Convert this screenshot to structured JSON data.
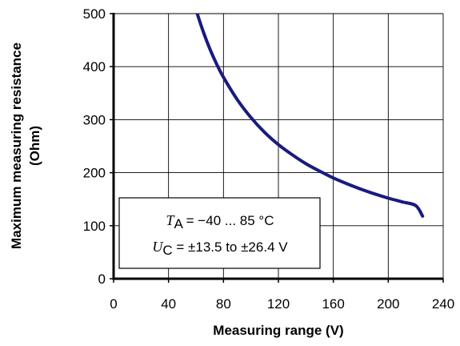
{
  "chart_data": {
    "type": "line",
    "xlabel": "Measuring range  (V)",
    "ylabel_line1": "Maximum measuring resistance",
    "ylabel_line2": "(Ohm)",
    "xlim": [
      0,
      240
    ],
    "ylim": [
      0,
      500
    ],
    "x_ticks": [
      "0",
      "40",
      "80",
      "120",
      "160",
      "200",
      "240"
    ],
    "y_ticks": [
      "0",
      "100",
      "200",
      "300",
      "400",
      "500"
    ],
    "grid": true,
    "series": [
      {
        "color": "#1a1a80",
        "x": [
          60,
          65,
          70,
          75,
          80,
          90,
          100,
          110,
          120,
          130,
          140,
          150,
          160,
          170,
          180,
          190,
          200,
          210,
          220,
          225
        ],
        "y": [
          507,
          468,
          434,
          405,
          380,
          338,
          304,
          276,
          253,
          234,
          217,
          203,
          190,
          179,
          169,
          160,
          152,
          145,
          138,
          118
        ]
      }
    ],
    "annotation": {
      "line1": {
        "var": "T",
        "sub": "A",
        "text": " = −40 ... 85 °C"
      },
      "line2": {
        "var": "U",
        "sub": "C",
        "text": " = ±13.5 to ±26.4 V"
      }
    }
  }
}
